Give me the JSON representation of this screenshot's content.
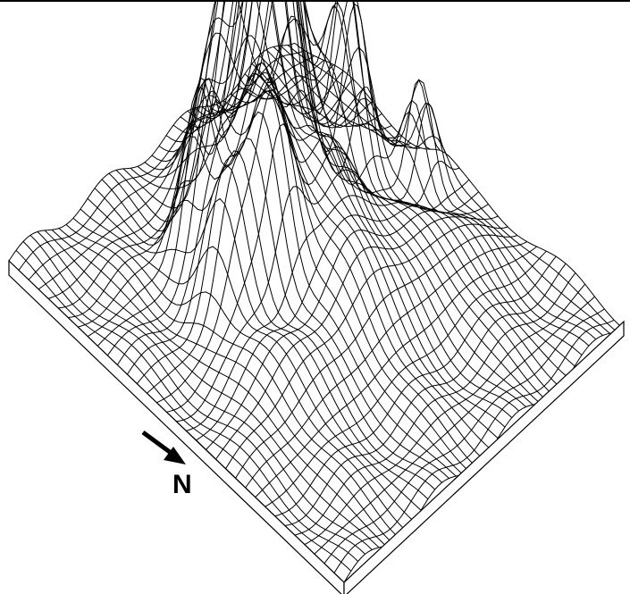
{
  "figure": {
    "type": "3d-wireframe-surface",
    "description_visible_text": "N",
    "north_arrow": {
      "label": "N",
      "icon": "arrow-south-east-icon"
    },
    "colors": {
      "line": "#000000",
      "background": "#ffffff",
      "frame": "#000000"
    },
    "grid": {
      "rows": 34,
      "cols": 40
    },
    "peaks": [
      {
        "u": 0.7,
        "v": 0.2,
        "h": 1.0,
        "s": 0.055
      },
      {
        "u": 0.62,
        "v": 0.28,
        "h": 0.72,
        "s": 0.05
      },
      {
        "u": 0.55,
        "v": 0.2,
        "h": 0.78,
        "s": 0.06
      },
      {
        "u": 0.8,
        "v": 0.33,
        "h": 0.7,
        "s": 0.045
      },
      {
        "u": 0.47,
        "v": 0.35,
        "h": 0.62,
        "s": 0.055
      },
      {
        "u": 0.36,
        "v": 0.27,
        "h": 0.58,
        "s": 0.045
      },
      {
        "u": 0.4,
        "v": 0.45,
        "h": 0.6,
        "s": 0.05
      },
      {
        "u": 0.3,
        "v": 0.4,
        "h": 0.45,
        "s": 0.05
      },
      {
        "u": 0.6,
        "v": 0.45,
        "h": 0.4,
        "s": 0.07
      },
      {
        "u": 0.92,
        "v": 0.45,
        "h": 0.36,
        "s": 0.035
      },
      {
        "u": 0.5,
        "v": 0.6,
        "h": 0.28,
        "s": 0.08
      },
      {
        "u": 0.75,
        "v": 0.62,
        "h": 0.18,
        "s": 0.09
      },
      {
        "u": 0.25,
        "v": 0.6,
        "h": 0.16,
        "s": 0.08
      }
    ]
  }
}
